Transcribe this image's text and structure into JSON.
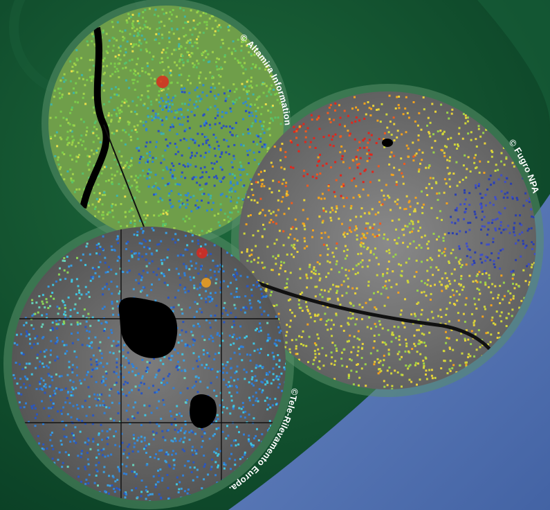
{
  "credits": {
    "altamira": "© Altamira Information",
    "fugro": "© Fugro NPA",
    "tre": "©Tele-Rilevamento Europa."
  },
  "colors": {
    "background_green": "#0d4a2c",
    "background_blue": "#4c6fae",
    "ring": "#5a8f6a",
    "sar_gray": "#6f6f6f",
    "uplift_red": "#e0261c",
    "mid_yellow": "#cfd63a",
    "stable_green": "#7ccc4a",
    "cyan": "#3fc4e0",
    "subsidence_blue": "#2a3fb0"
  },
  "panels": [
    {
      "name": "top-left-insar-map",
      "palette": [
        "#9fd24a",
        "#7ccc4a",
        "#58c06a",
        "#3fb4a8",
        "#2f86d8",
        "#2c4fc0",
        "#e7e04a"
      ]
    },
    {
      "name": "right-insar-map",
      "palette": [
        "#e0261c",
        "#f05a1e",
        "#f2a21e",
        "#e8d23a",
        "#cfd63a",
        "#9ad24a",
        "#3f4fc8",
        "#2a3fb0"
      ]
    },
    {
      "name": "bottom-left-insar-map",
      "palette": [
        "#2f7fd8",
        "#3a9fe0",
        "#3fc4e0",
        "#2a56c0",
        "#68d0b8",
        "#8ad45a"
      ]
    }
  ]
}
